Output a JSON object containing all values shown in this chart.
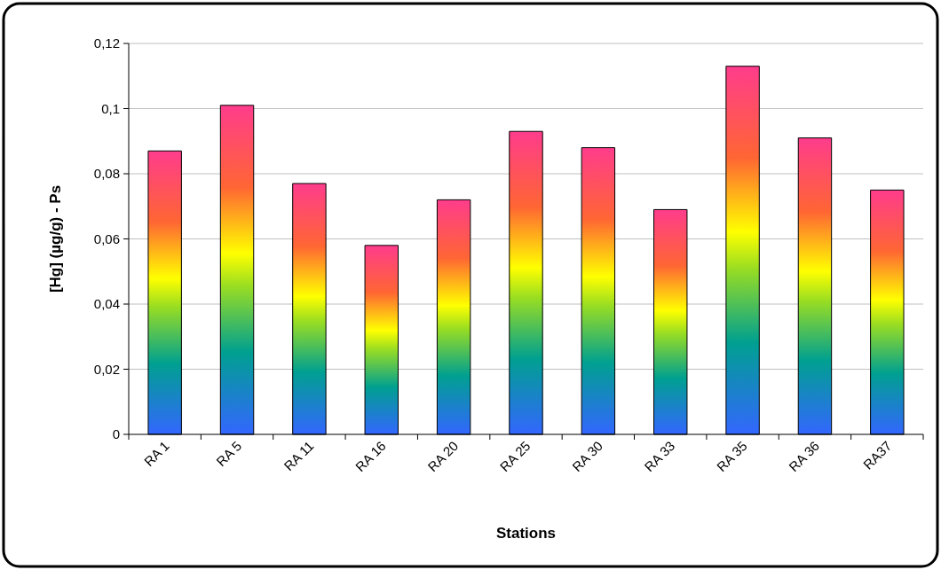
{
  "chart_data": {
    "type": "bar",
    "xlabel": "Stations",
    "ylabel": "[Hg] (µg/g) - Ps",
    "categories": [
      "RA 1",
      "RA 5",
      "RA 11",
      "RA 16",
      "RA 20",
      "RA 25",
      "RA 30",
      "RA 33",
      "RA 35",
      "RA 36",
      "RA37"
    ],
    "values": [
      0.087,
      0.101,
      0.077,
      0.058,
      0.072,
      0.093,
      0.088,
      0.069,
      0.113,
      0.091,
      0.075
    ],
    "color": "#ff3c8c",
    "ylim": [
      0,
      0.12
    ],
    "yticks": [
      0,
      {
        "value": 0.02,
        "label": "0,02"
      },
      {
        "value": 0.04,
        "label": "0,04"
      },
      {
        "value": 0.06,
        "label": "0,06"
      },
      {
        "value": 0.08,
        "label": "0,08"
      },
      {
        "value": 0.1,
        "label": "0,1"
      },
      {
        "value": 0.12,
        "label": "0,12"
      }
    ],
    "grid": "y"
  }
}
